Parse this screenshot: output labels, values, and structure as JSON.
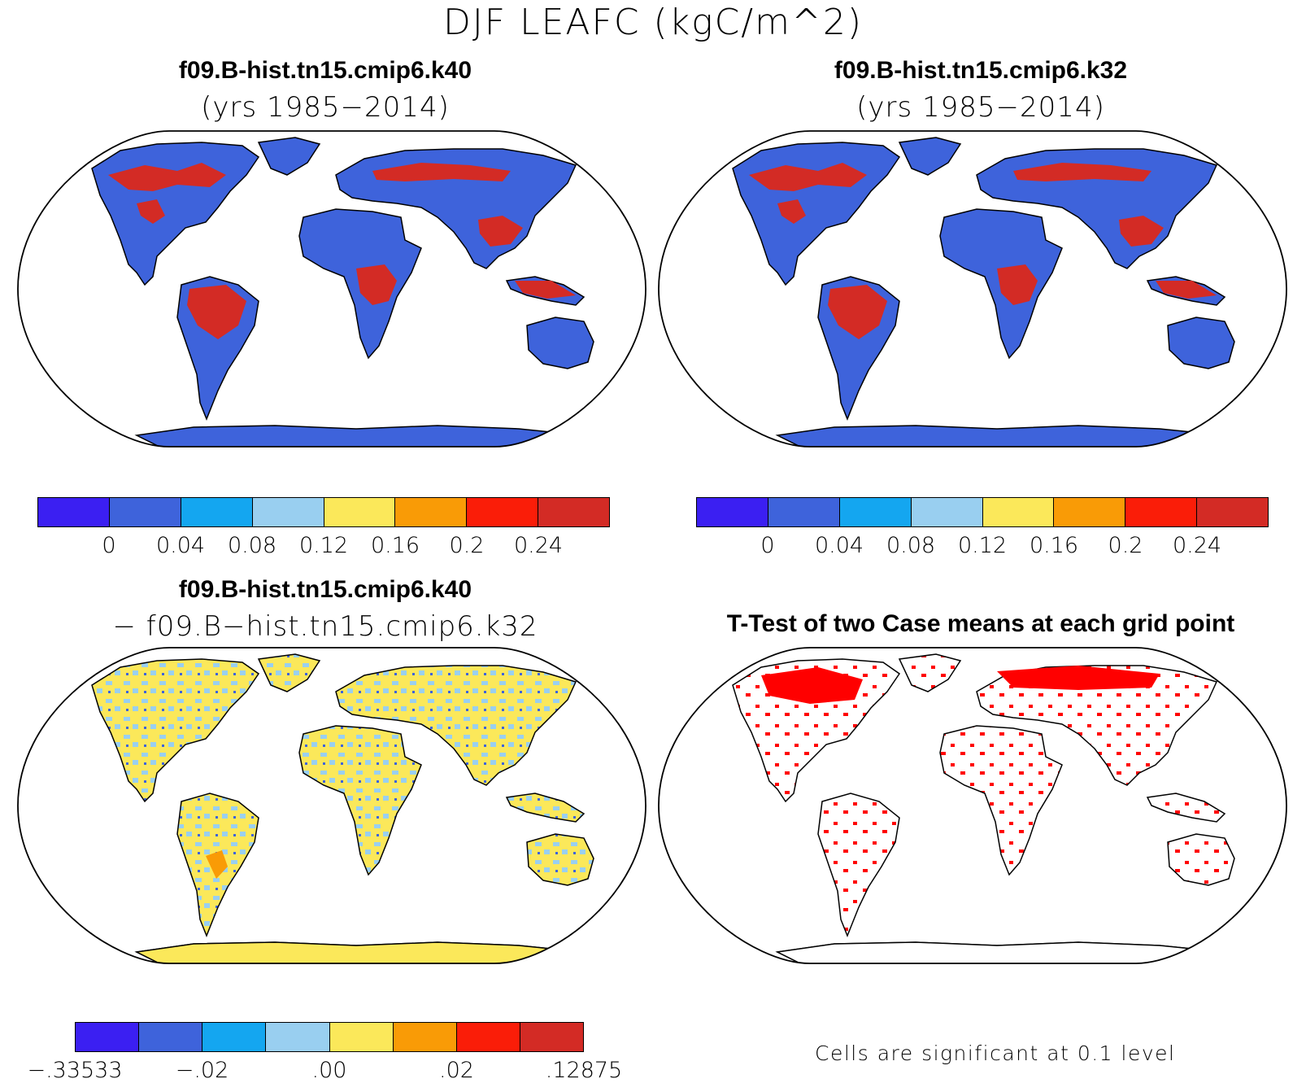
{
  "title": "DJF LEAFC (kgC/m^2)",
  "panels": [
    {
      "title": "f09.B-hist.tn15.cmip6.k40",
      "subtitle": "(yrs 1985−2014)"
    },
    {
      "title": "f09.B-hist.tn15.cmip6.k32",
      "subtitle": "(yrs 1985−2014)"
    },
    {
      "title": "f09.B-hist.tn15.cmip6.k40",
      "subtitle": "− f09.B−hist.tn15.cmip6.k32"
    },
    {
      "title": "T-Test of two Case means at each grid point",
      "subtitle": ""
    }
  ],
  "colorbars": {
    "field": {
      "colors": [
        "#3b1ff2",
        "#3e63db",
        "#14a6f0",
        "#99cff0",
        "#fbe85a",
        "#f99b06",
        "#fa1d08",
        "#d32b25"
      ],
      "labels": [
        "0",
        "0.04",
        "0.08",
        "0.12",
        "0.16",
        "0.2",
        "0.24"
      ]
    },
    "diff": {
      "colors": [
        "#3b1ff2",
        "#3e63db",
        "#14a6f0",
        "#99cff0",
        "#fbe85a",
        "#f99b06",
        "#fa1d08",
        "#d32b25"
      ],
      "labels": [
        "−.33533",
        "−.02",
        ".00",
        ".02",
        ".12875"
      ]
    }
  },
  "significance_note": "Cells are significant at 0.1 level",
  "colors": {
    "ocean": "#ffffff",
    "land_low": "#3e63db",
    "land_high": "#d32b25",
    "diff_neutral": "#fbe85a",
    "diff_light_blue": "#99cff0",
    "significant": "#ff0000",
    "outline": "#000000"
  }
}
